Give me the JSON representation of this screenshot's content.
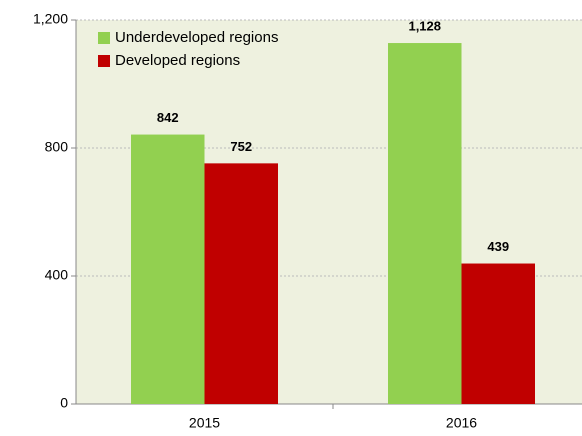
{
  "chart_data": {
    "type": "bar",
    "categories": [
      "2015",
      "2016"
    ],
    "series": [
      {
        "name": "Underdeveloped regions",
        "color": "#92d050",
        "values": [
          842,
          1128
        ],
        "value_labels": [
          "842",
          "1,128"
        ]
      },
      {
        "name": "Developed regions",
        "color": "#c00000",
        "values": [
          752,
          439
        ],
        "value_labels": [
          "752",
          "439"
        ]
      }
    ],
    "ylim": [
      0,
      1200
    ],
    "yticks": [
      0,
      400,
      800,
      {
        "value": 1200,
        "label": "1,200"
      }
    ],
    "grid": true,
    "legend": "top-left"
  }
}
